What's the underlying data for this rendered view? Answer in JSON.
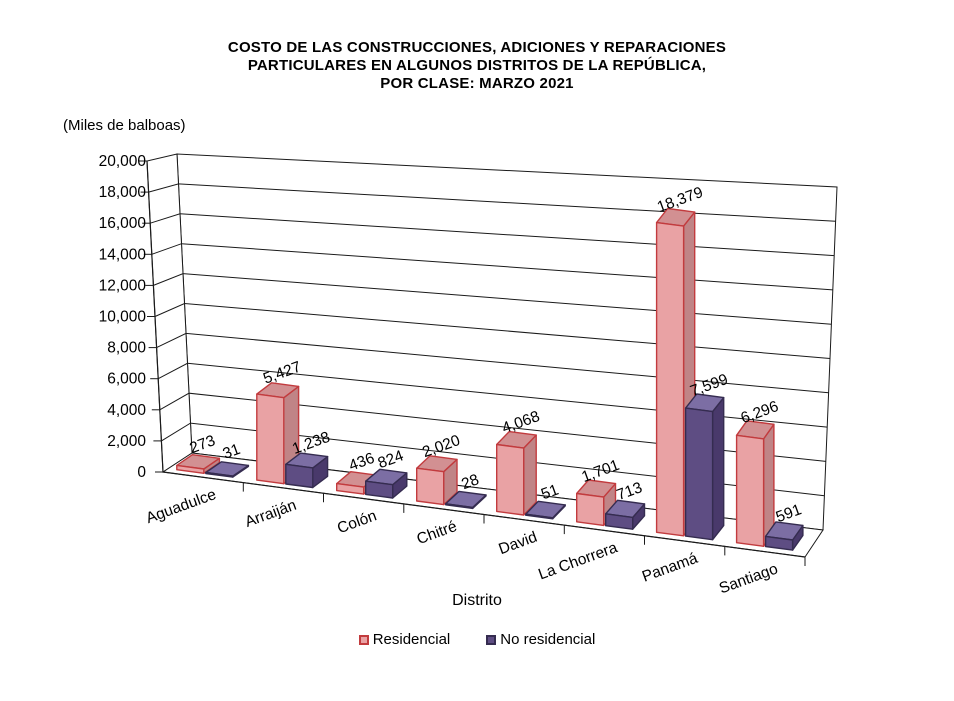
{
  "page": {
    "background": "#ffffff"
  },
  "chart_data": {
    "type": "bar",
    "projection": "3d-perspective",
    "title_lines": [
      "COSTO DE LAS CONSTRUCCIONES, ADICIONES Y REPARACIONES",
      "PARTICULARES EN ALGUNOS DISTRITOS DE LA REPÚBLICA,",
      "POR CLASE: MARZO 2021"
    ],
    "unit_label": "(Miles de balboas)",
    "xlabel": "Distrito",
    "categories": [
      "Aguadulce",
      "Arraiján",
      "Colón",
      "Chitré",
      "David",
      "La Chorrera",
      "Panamá",
      "Santiago"
    ],
    "series": [
      {
        "name": "Residencial",
        "values": [
          273,
          5427,
          436,
          2020,
          4068,
          1701,
          18379,
          6296
        ],
        "labels": [
          "273",
          "5,427",
          "436",
          "2,020",
          "4,068",
          "1,701",
          "18,379",
          "6,296"
        ],
        "fill": "#E9A2A4",
        "top": "#D29092",
        "side": "#C08486",
        "border": "#C23B3E"
      },
      {
        "name": "No residencial",
        "values": [
          31,
          1238,
          824,
          28,
          51,
          713,
          7599,
          591
        ],
        "labels": [
          "31",
          "1,238",
          "824",
          "28",
          "51",
          "713",
          "7,599",
          "591"
        ],
        "fill": "#5E4D83",
        "top": "#7C6EA4",
        "side": "#49396B",
        "border": "#352C50"
      }
    ],
    "ylim": [
      0,
      20000
    ],
    "y_ticks": [
      0,
      2000,
      4000,
      6000,
      8000,
      10000,
      12000,
      14000,
      16000,
      18000,
      20000
    ],
    "y_tick_labels": [
      "0",
      "2,000",
      "4,000",
      "6,000",
      "8,000",
      "10,000",
      "12,000",
      "14,000",
      "16,000",
      "18,000",
      "20,000"
    ],
    "grid": true,
    "legend_position": "bottom",
    "line_color": "#1a1a1a",
    "text_color": "#000000"
  }
}
